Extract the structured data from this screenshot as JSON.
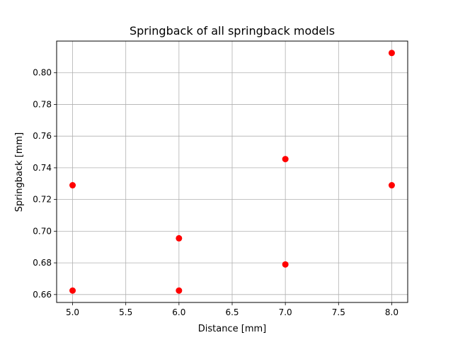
{
  "chart_data": {
    "type": "scatter",
    "title": "Springback of all springback models",
    "xlabel": "Distance [mm]",
    "ylabel": "Springback [mm]",
    "xlim": [
      4.85,
      8.15
    ],
    "ylim": [
      0.655,
      0.82
    ],
    "xticks": [
      5.0,
      5.5,
      6.0,
      6.5,
      7.0,
      7.5,
      8.0
    ],
    "xtick_labels": [
      "5.0",
      "5.5",
      "6.0",
      "6.5",
      "7.0",
      "7.5",
      "8.0"
    ],
    "yticks": [
      0.66,
      0.68,
      0.7,
      0.72,
      0.74,
      0.76,
      0.78,
      0.8
    ],
    "ytick_labels": [
      "0.66",
      "0.68",
      "0.70",
      "0.72",
      "0.74",
      "0.76",
      "0.78",
      "0.80"
    ],
    "grid": true,
    "marker_color": "#ff0000",
    "points": [
      {
        "x": 5.0,
        "y": 0.729
      },
      {
        "x": 5.0,
        "y": 0.6625
      },
      {
        "x": 6.0,
        "y": 0.6955
      },
      {
        "x": 6.0,
        "y": 0.6625
      },
      {
        "x": 7.0,
        "y": 0.7455
      },
      {
        "x": 7.0,
        "y": 0.679
      },
      {
        "x": 8.0,
        "y": 0.8125
      },
      {
        "x": 8.0,
        "y": 0.729
      }
    ]
  }
}
